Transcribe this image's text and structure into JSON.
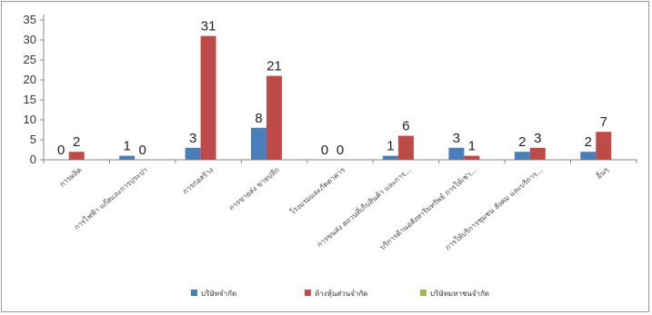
{
  "chart_data": {
    "type": "bar",
    "categories": [
      "การผลิต",
      "การไฟฟ้า แก๊สและการประปา",
      "การก่อสร้าง",
      "การขายส่ง ขายปลีก",
      "โรงแรมและภัตตาคาร",
      "การขนส่ง สถานที่เก็บสินค้า และการ...",
      "บริการด้านอสังหาริมทรัพย์ การให้เช่า...",
      "การให้บริการชุมชน สังคม และบริการ...",
      "อื่นๆ"
    ],
    "series": [
      {
        "name": "บริษัทจำกัด",
        "color": "#4a7ebb",
        "values": [
          0,
          1,
          3,
          8,
          0,
          1,
          3,
          2,
          2
        ]
      },
      {
        "name": "ห้างหุ้นส่วนจำกัด",
        "color": "#be4b48",
        "values": [
          2,
          0,
          31,
          21,
          0,
          6,
          1,
          3,
          7
        ]
      },
      {
        "name": "บริษัทมหาชนจำกัด",
        "color": "#98b954",
        "values": [
          0,
          0,
          0,
          0,
          0,
          0,
          0,
          0,
          0
        ]
      }
    ],
    "data_labels": [
      {
        "text": "0",
        "category": 0,
        "value": 0
      },
      {
        "text": "2",
        "category": 0,
        "value": 2
      },
      {
        "text": "1",
        "category": 1,
        "value": 1
      },
      {
        "text": "0",
        "category": 1,
        "value": 0
      },
      {
        "text": "3",
        "category": 2,
        "value": 3
      },
      {
        "text": "31",
        "category": 2,
        "value": 31
      },
      {
        "text": "8",
        "category": 3,
        "value": 8
      },
      {
        "text": "21",
        "category": 3,
        "value": 21
      },
      {
        "text": "0",
        "category": 4,
        "value": 0
      },
      {
        "text": "0",
        "category": 4,
        "value": 0
      },
      {
        "text": "1",
        "category": 5,
        "value": 1
      },
      {
        "text": "6",
        "category": 5,
        "value": 6
      },
      {
        "text": "3",
        "category": 6,
        "value": 3
      },
      {
        "text": "1",
        "category": 6,
        "value": 1
      },
      {
        "text": "2",
        "category": 7,
        "value": 2
      },
      {
        "text": "3",
        "category": 7,
        "value": 3
      },
      {
        "text": "2",
        "category": 8,
        "value": 2
      },
      {
        "text": "7",
        "category": 8,
        "value": 7
      }
    ],
    "ylim": [
      0,
      35
    ],
    "yticks": [
      0,
      5,
      10,
      15,
      20,
      25,
      30,
      35
    ],
    "grid": false,
    "legend": "bottom",
    "title": "",
    "xlabel": "",
    "ylabel": ""
  }
}
